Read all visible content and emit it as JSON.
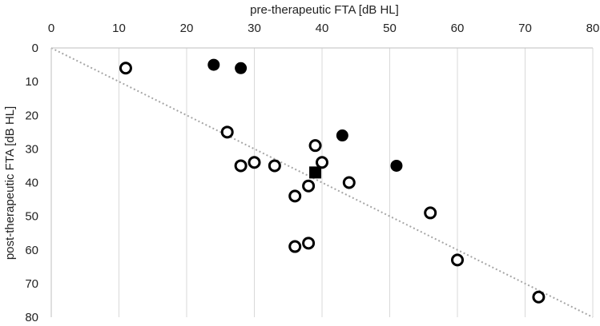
{
  "chart_data": {
    "type": "scatter",
    "xlabel": "pre-therapeutic FTA [dB HL]",
    "ylabel": "post-therapeutic FTA  [dB HL]",
    "xlim": [
      0,
      80
    ],
    "ylim": [
      0,
      80
    ],
    "y_axis_inverted": true,
    "x_axis_position": "top",
    "x_ticks": [
      0,
      10,
      20,
      30,
      40,
      50,
      60,
      70,
      80
    ],
    "y_ticks": [
      0,
      10,
      20,
      30,
      40,
      50,
      60,
      70,
      80
    ],
    "grid": "vertical",
    "series": [
      {
        "marker": "open-circle",
        "points": [
          [
            11,
            6
          ],
          [
            26,
            25
          ],
          [
            28,
            35
          ],
          [
            30,
            34
          ],
          [
            33,
            35
          ],
          [
            39,
            29
          ],
          [
            40,
            34
          ],
          [
            38,
            41
          ],
          [
            36,
            44
          ],
          [
            44,
            40
          ],
          [
            56,
            49
          ],
          [
            36,
            59
          ],
          [
            38,
            58
          ],
          [
            60,
            63
          ],
          [
            72,
            74
          ]
        ]
      },
      {
        "marker": "filled-circle",
        "points": [
          [
            24,
            5
          ],
          [
            28,
            6
          ],
          [
            43,
            26
          ],
          [
            51,
            35
          ]
        ]
      },
      {
        "marker": "filled-square",
        "points": [
          [
            39,
            37
          ]
        ]
      }
    ],
    "reference_line": {
      "style": "dotted",
      "color": "#a6a6a6",
      "from": [
        0,
        0
      ],
      "to": [
        80,
        80
      ]
    }
  }
}
